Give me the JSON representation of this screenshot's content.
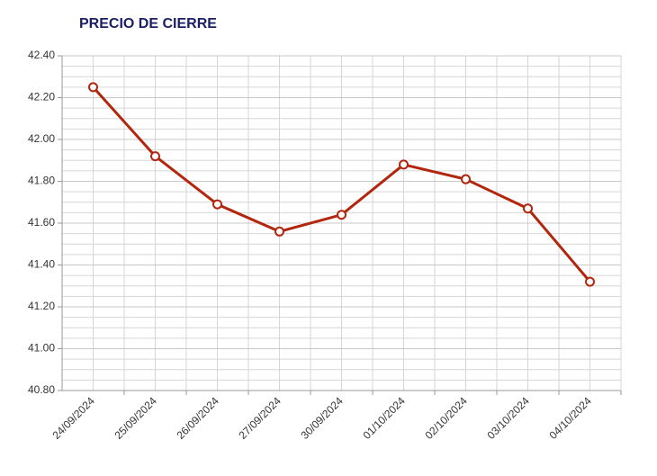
{
  "chart_data": {
    "type": "line",
    "title": "PRECIO DE CIERRE",
    "categories": [
      "24/09/2024",
      "25/09/2024",
      "26/09/2024",
      "27/09/2024",
      "30/09/2024",
      "01/10/2024",
      "02/10/2024",
      "03/10/2024",
      "04/10/2024"
    ],
    "series": [
      {
        "name": "Precio de cierre",
        "color": "#b3260e",
        "values": [
          42.25,
          41.92,
          41.69,
          41.56,
          41.64,
          41.88,
          41.81,
          41.67,
          41.32
        ]
      }
    ],
    "ylim": [
      40.8,
      42.4
    ],
    "yticks": [
      {
        "value": 40.8,
        "label": "40.80"
      },
      {
        "value": 41,
        "label": "41.00"
      },
      {
        "value": 41.2,
        "label": "41.20"
      },
      {
        "value": 41.4,
        "label": "41.40"
      },
      {
        "value": 41.6,
        "label": "41.60"
      },
      {
        "value": 41.8,
        "label": "41.80"
      },
      {
        "value": 42,
        "label": "42.00"
      },
      {
        "value": 42.2,
        "label": "42.20"
      },
      {
        "value": 42.4,
        "label": "42.40"
      }
    ],
    "grid": true
  }
}
